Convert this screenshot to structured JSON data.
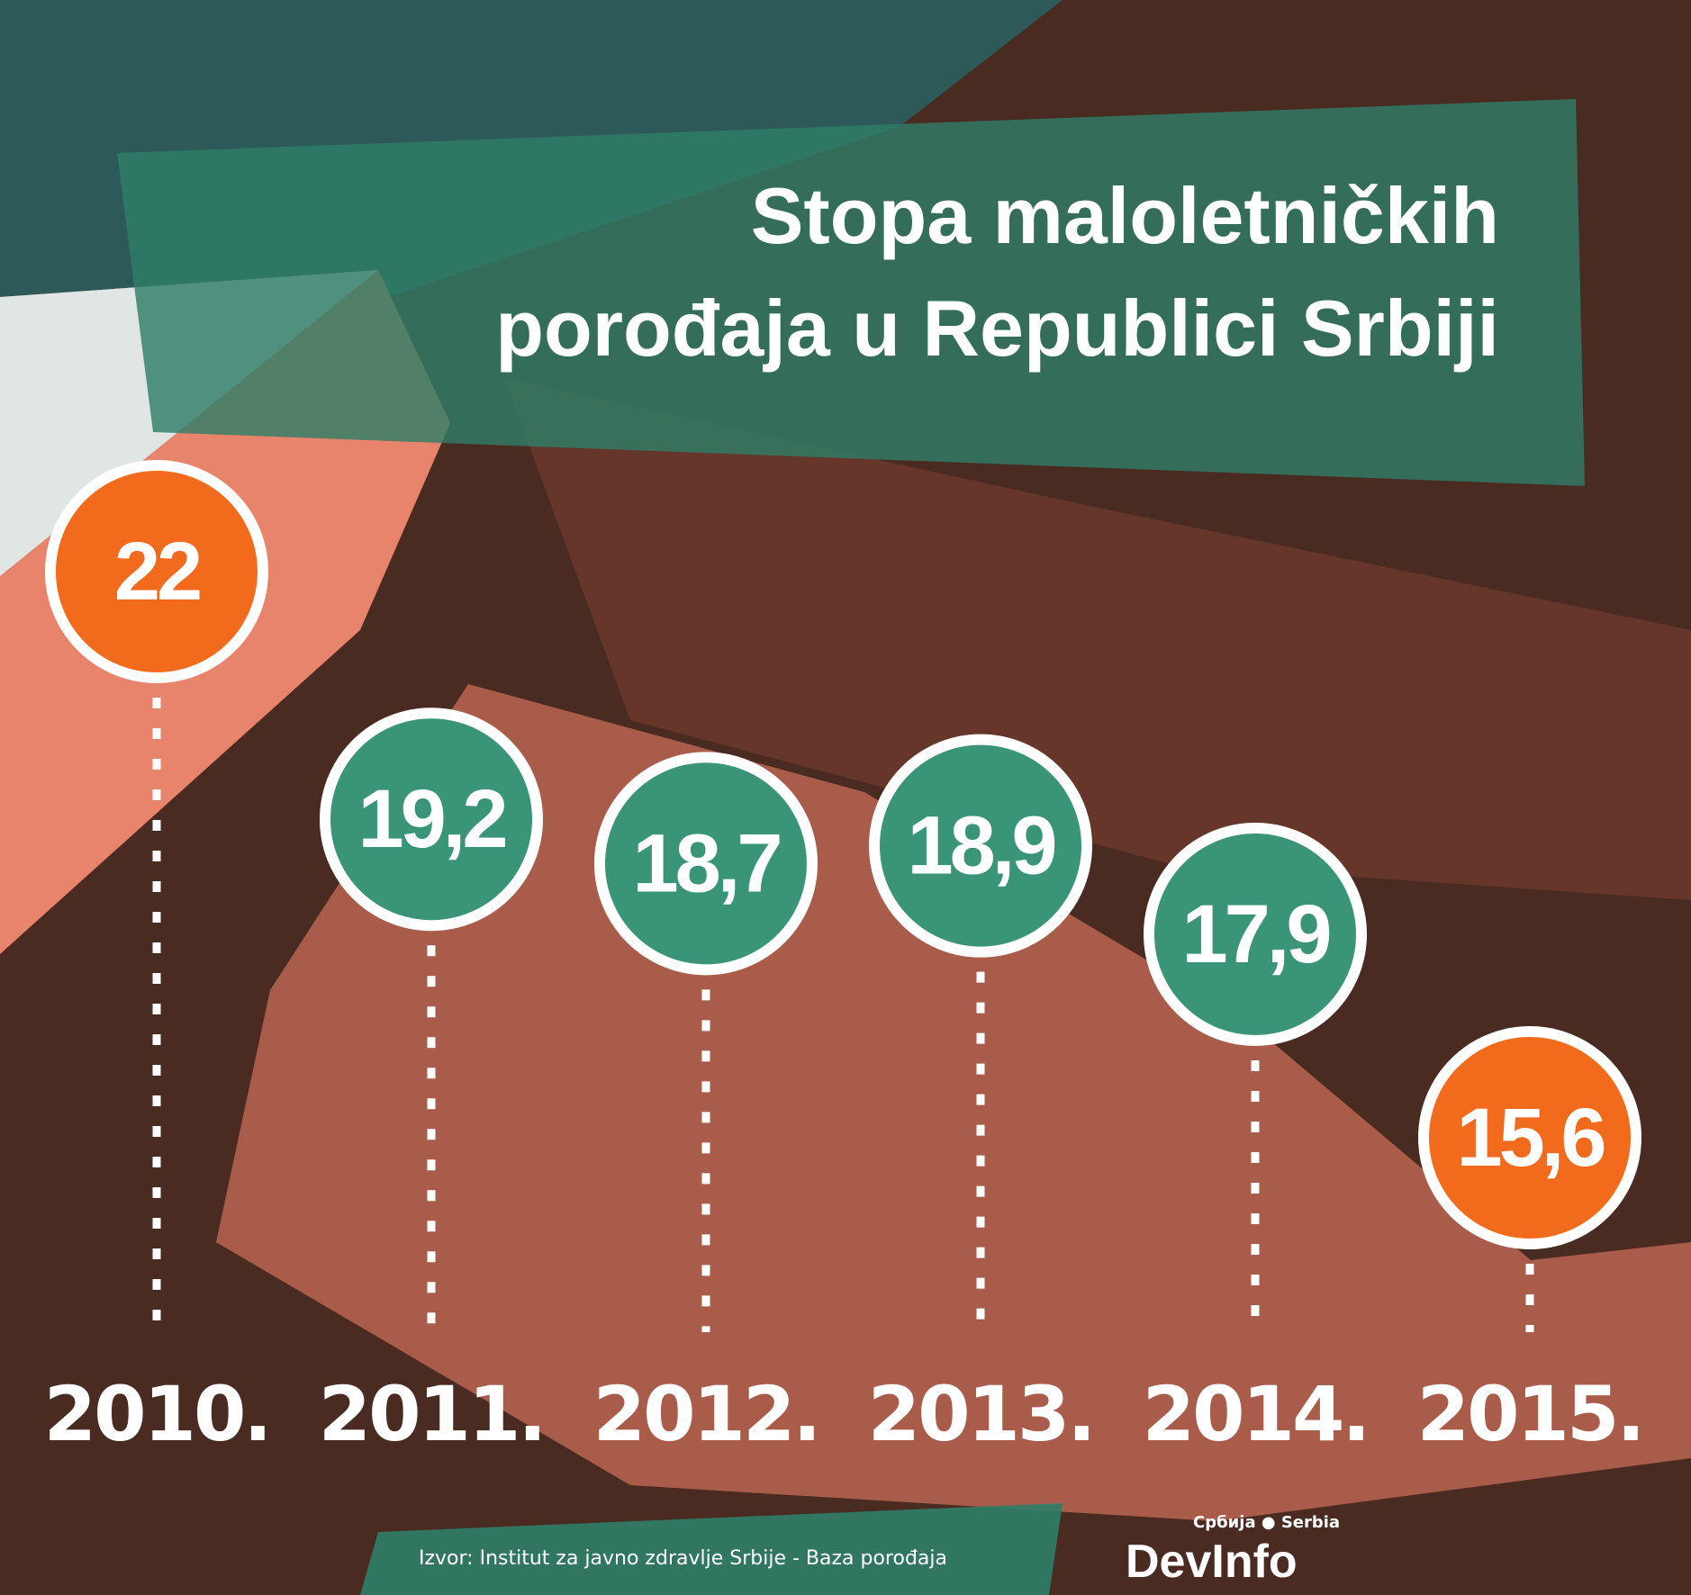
{
  "chart_data": {
    "type": "bubble-timeline",
    "title": [
      "Stopa maloletničkih",
      "porođaja u Republici Srbiji"
    ],
    "categories": [
      "2010.",
      "2011.",
      "2012.",
      "2013.",
      "2014.",
      "2015."
    ],
    "values": [
      22,
      19.2,
      18.7,
      18.9,
      17.9,
      15.6
    ],
    "value_labels": [
      "22",
      "19,2",
      "18,7",
      "18,9",
      "17,9",
      "15,6"
    ],
    "colors": [
      "#f26b1d",
      "#3a9478",
      "#3a9478",
      "#3a9478",
      "#3a9478",
      "#f26b1d"
    ],
    "source": "Izvor: Institut za javno zdravlje Srbije - Baza porođaja",
    "logo": {
      "top": "Србија ● Serbia",
      "name": "DevInfo"
    }
  }
}
